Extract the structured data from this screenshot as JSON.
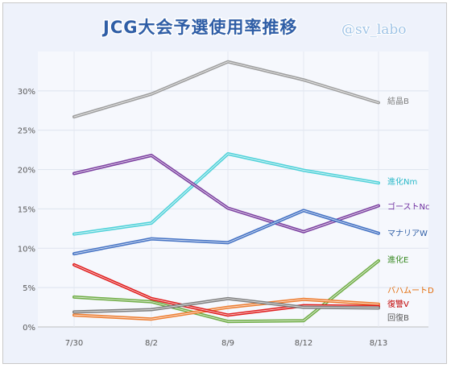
{
  "chart_data": {
    "type": "line",
    "title": "JCG大会予選使用率推移",
    "watermark": "@sv_labo",
    "categories": [
      "7/30",
      "8/2",
      "8/9",
      "8/12",
      "8/13"
    ],
    "y_ticks": [
      "0%",
      "5%",
      "10%",
      "15%",
      "20%",
      "25%",
      "30%"
    ],
    "ylim": [
      0,
      35
    ],
    "grid": true,
    "series": [
      {
        "name": "結晶B",
        "color": "#9e9e9e",
        "values": [
          26.7,
          29.6,
          33.7,
          31.4,
          28.5
        ]
      },
      {
        "name": "進化Nm",
        "color": "#4fd1d9",
        "values": [
          11.8,
          13.2,
          22.0,
          19.9,
          18.3
        ]
      },
      {
        "name": "ゴーストNc",
        "color": "#7b3fa0",
        "values": [
          19.5,
          21.8,
          15.1,
          12.1,
          15.4
        ]
      },
      {
        "name": "マナリアW",
        "color": "#4472c4",
        "values": [
          9.3,
          11.2,
          10.7,
          14.8,
          11.9
        ]
      },
      {
        "name": "進化E",
        "color": "#70ad47",
        "values": [
          3.8,
          3.2,
          0.7,
          0.8,
          8.4
        ]
      },
      {
        "name": "バハムートD",
        "color": "#ed7d31",
        "values": [
          1.5,
          1.0,
          2.5,
          3.5,
          2.9
        ]
      },
      {
        "name": "復讐V",
        "color": "#e01e1e",
        "values": [
          7.9,
          3.6,
          1.5,
          2.7,
          2.6
        ]
      },
      {
        "name": "回復B",
        "color": "#7f7f7f",
        "values": [
          1.9,
          2.2,
          3.6,
          2.5,
          2.4
        ]
      }
    ]
  }
}
